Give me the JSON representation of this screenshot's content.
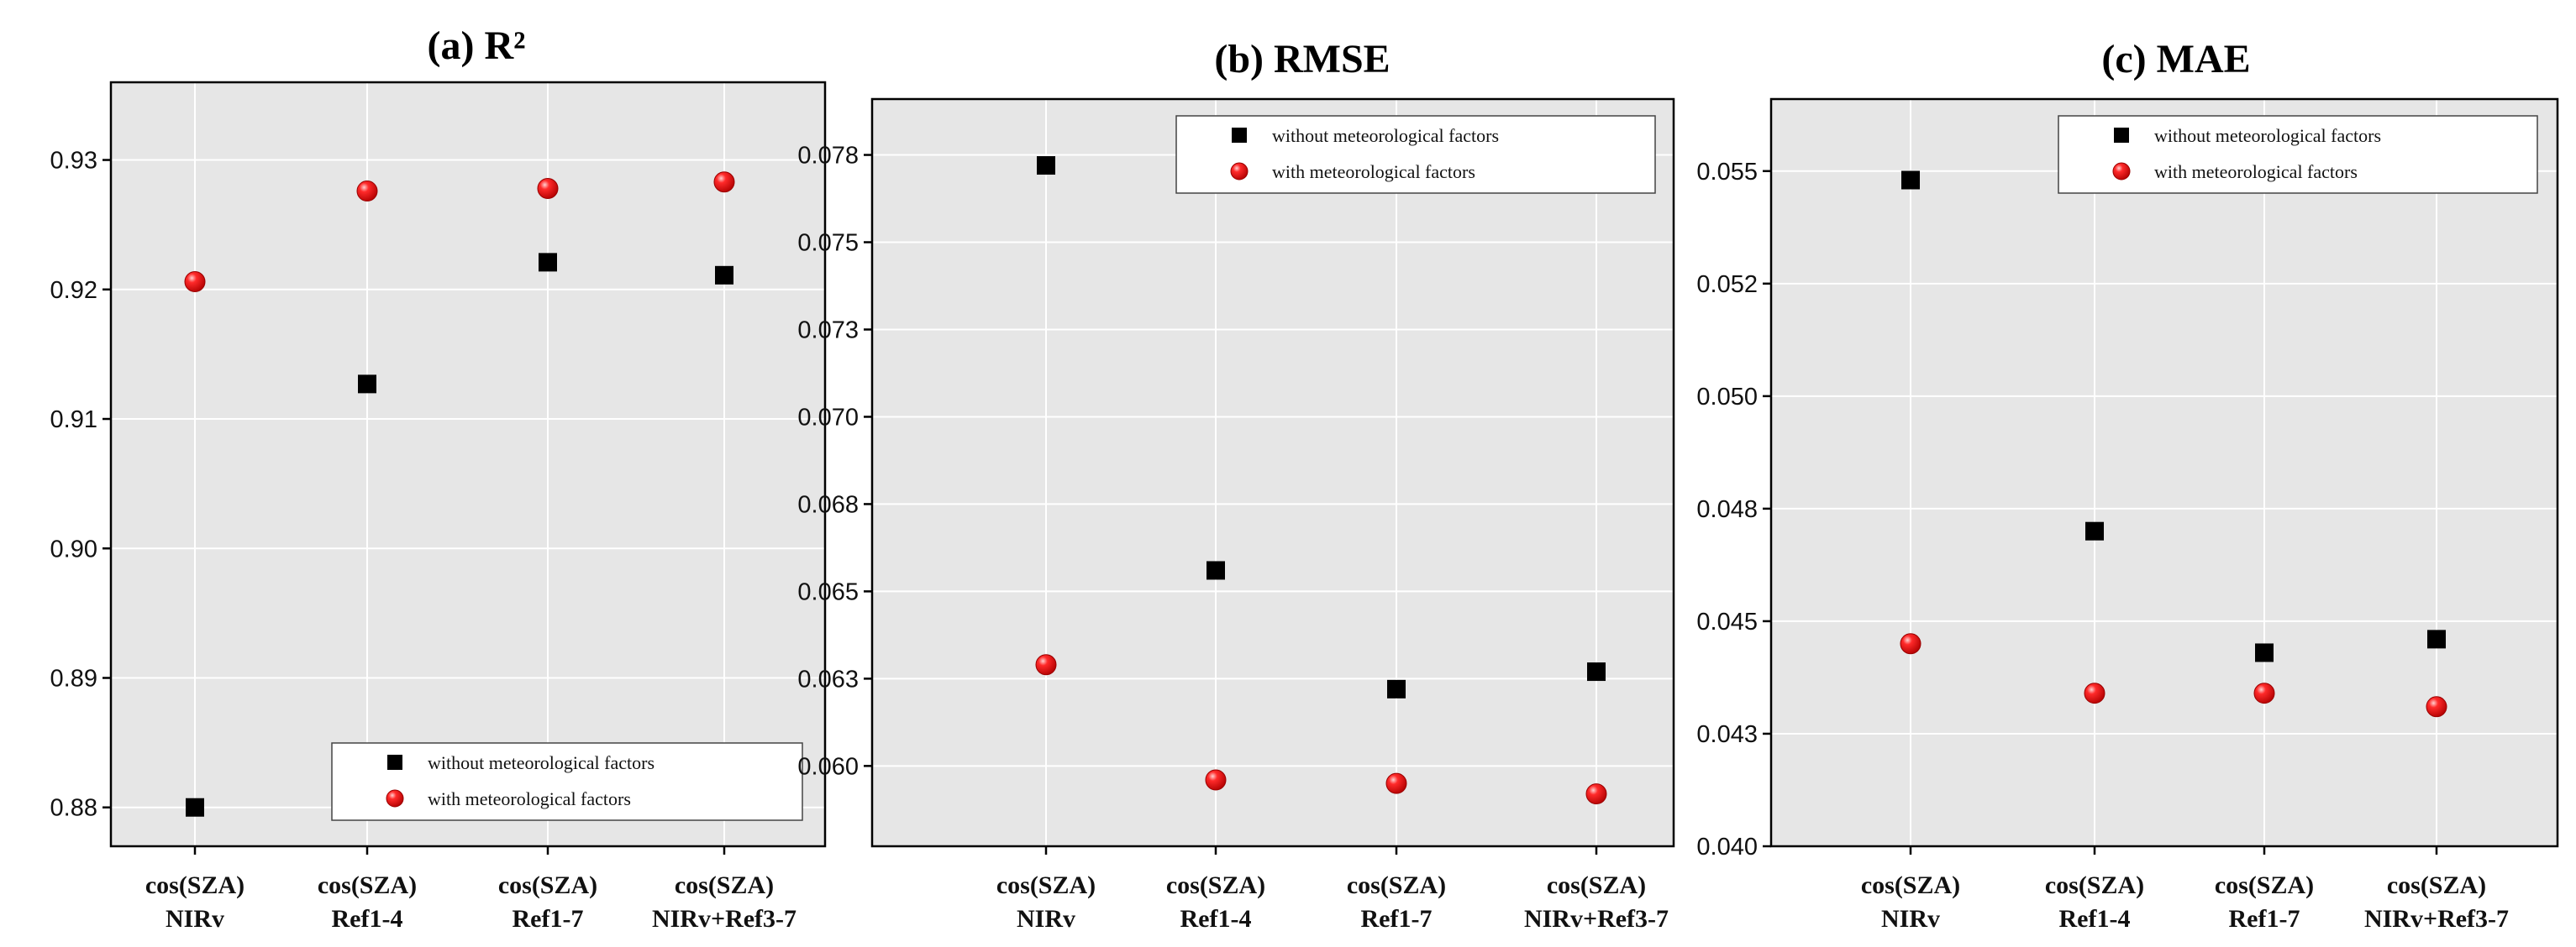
{
  "colors": {
    "plot_background": "#e6e6e6",
    "grid": "#ffffff",
    "without_marker": "#000000",
    "with_marker": "#e00000"
  },
  "chart_data": [
    {
      "type": "scatter",
      "title": "(a) R²",
      "categories": [
        [
          "cos(SZA)",
          "NIRv"
        ],
        [
          "cos(SZA)",
          "Ref1-4"
        ],
        [
          "cos(SZA)",
          "Ref1-7"
        ],
        [
          "cos(SZA)",
          "NIRv+Ref3-7"
        ]
      ],
      "series": [
        {
          "name": "without meteorological factors",
          "marker": "square",
          "values": [
            0.88,
            0.9127,
            0.9221,
            0.9211
          ]
        },
        {
          "name": "with meteorological factors",
          "marker": "sphere",
          "values": [
            0.9206,
            0.9276,
            0.9278,
            0.9283
          ]
        }
      ],
      "ylim": [
        0.877,
        0.936
      ],
      "yticks": [
        0.88,
        0.89,
        0.9,
        0.91,
        0.92,
        0.93
      ],
      "ytick_labels": [
        "0.88",
        "0.89",
        "0.90",
        "0.91",
        "0.92",
        "0.93"
      ],
      "legend_position": "bottom-right",
      "grid": true
    },
    {
      "type": "scatter",
      "title": "(b) RMSE",
      "categories": [
        [
          "cos(SZA)",
          "NIRv"
        ],
        [
          "cos(SZA)",
          "Ref1-4"
        ],
        [
          "cos(SZA)",
          "Ref1-7"
        ],
        [
          "cos(SZA)",
          "NIRv+Ref3-7"
        ]
      ],
      "series": [
        {
          "name": "without meteorological factors",
          "marker": "square",
          "values": [
            0.0772,
            0.0656,
            0.0622,
            0.0627
          ]
        },
        {
          "name": "with meteorological factors",
          "marker": "sphere",
          "values": [
            0.0629,
            0.0596,
            0.0595,
            0.0592
          ]
        }
      ],
      "ylim": [
        0.0577,
        0.0791
      ],
      "yticks": [
        0.06,
        0.0625,
        0.065,
        0.0675,
        0.07,
        0.0725,
        0.075,
        0.0775
      ],
      "ytick_labels": [
        "0.060",
        "0.063",
        "0.065",
        "0.068",
        "0.070",
        "0.073",
        "0.075",
        "0.078"
      ],
      "legend_position": "top-right",
      "grid": true
    },
    {
      "type": "scatter",
      "title": "(c) MAE",
      "categories": [
        [
          "cos(SZA)",
          "NIRv"
        ],
        [
          "cos(SZA)",
          "Ref1-4"
        ],
        [
          "cos(SZA)",
          "Ref1-7"
        ],
        [
          "cos(SZA)",
          "NIRv+Ref3-7"
        ]
      ],
      "series": [
        {
          "name": "without meteorological factors",
          "marker": "square",
          "values": [
            0.0548,
            0.047,
            0.0443,
            0.0446
          ]
        },
        {
          "name": "with meteorological factors",
          "marker": "sphere",
          "values": [
            0.0445,
            0.0434,
            0.0434,
            0.0431
          ]
        }
      ],
      "ylim": [
        0.04,
        0.0566
      ],
      "yticks": [
        0.04,
        0.0425,
        0.045,
        0.0475,
        0.05,
        0.0525,
        0.055
      ],
      "ytick_labels": [
        "0.040",
        "0.043",
        "0.045",
        "0.048",
        "0.050",
        "0.052",
        "0.055"
      ],
      "legend_position": "top-right",
      "grid": true
    }
  ]
}
